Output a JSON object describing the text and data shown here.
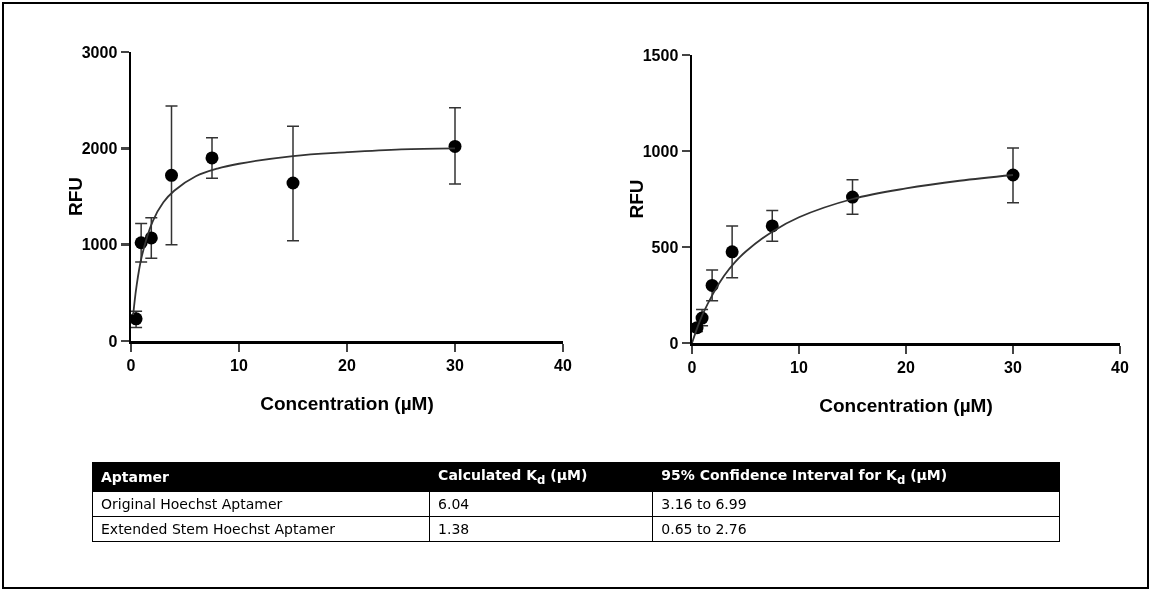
{
  "chart_data": [
    {
      "type": "scatter",
      "xlabel": "Concentration (µM)",
      "ylabel": "RFU",
      "xlim": [
        0,
        40
      ],
      "xticks": [
        0,
        10,
        20,
        30,
        40
      ],
      "ylim": [
        0,
        3000
      ],
      "yticks": [
        0,
        1000,
        2000,
        3000
      ],
      "grid": false,
      "series": [
        {
          "type": "scatter",
          "marker": "circle",
          "color": "#000000",
          "x": [
            0.47,
            0.94,
            1.88,
            3.75,
            7.5,
            15,
            30
          ],
          "values": [
            230,
            1020,
            1070,
            1720,
            1900,
            1640,
            2020
          ],
          "errors": [
            [
              140,
              310
            ],
            [
              820,
              1220
            ],
            [
              860,
              1280
            ],
            [
              1000,
              2440
            ],
            [
              1690,
              2110
            ],
            [
              1040,
              2230
            ],
            [
              1630,
              2420
            ]
          ]
        },
        {
          "type": "line",
          "marker": "none",
          "color": "#333333",
          "line_style": "solid",
          "x": [
            0.2,
            0.5,
            1,
            2,
            3,
            4,
            6,
            8,
            10,
            15,
            20,
            25,
            30
          ],
          "values": [
            270,
            560,
            880,
            1240,
            1440,
            1560,
            1710,
            1790,
            1840,
            1920,
            1960,
            1990,
            2000
          ]
        }
      ]
    },
    {
      "type": "scatter",
      "xlabel": "Concentration (µM)",
      "ylabel": "RFU",
      "xlim": [
        0,
        40
      ],
      "xticks": [
        0,
        10,
        20,
        30,
        40
      ],
      "ylim": [
        0,
        1500
      ],
      "yticks": [
        0,
        500,
        1000,
        1500
      ],
      "grid": false,
      "series": [
        {
          "type": "scatter",
          "marker": "circle",
          "color": "#000000",
          "x": [
            0.47,
            0.94,
            1.88,
            3.75,
            7.5,
            15,
            30
          ],
          "values": [
            80,
            130,
            300,
            475,
            610,
            760,
            875
          ],
          "errors": [
            [
              60,
              100
            ],
            [
              90,
              175
            ],
            [
              220,
              380
            ],
            [
              340,
              610
            ],
            [
              530,
              690
            ],
            [
              670,
              850
            ],
            [
              730,
              1015
            ]
          ]
        },
        {
          "type": "line",
          "marker": "none",
          "color": "#333333",
          "line_style": "solid",
          "x": [
            0,
            0.5,
            1,
            2,
            3,
            4,
            5,
            7.5,
            10,
            15,
            20,
            25,
            30
          ],
          "values": [
            0,
            80,
            150,
            260,
            350,
            420,
            475,
            580,
            655,
            750,
            805,
            845,
            875
          ]
        }
      ]
    },
    {
      "type": "other",
      "categories": [
        "Aptamer",
        "Calculated K$_{d}$ (µM)",
        "95% Confidence Interval for K$_{d}$ (µM)"
      ],
      "cell_labels": [
        [
          "Original Hoechst Aptamer",
          "6.04",
          "3.16 to 6.99"
        ],
        [
          "Extended Stem Hoechst Aptamer",
          "1.38",
          "0.65 to 2.76"
        ]
      ]
    }
  ]
}
